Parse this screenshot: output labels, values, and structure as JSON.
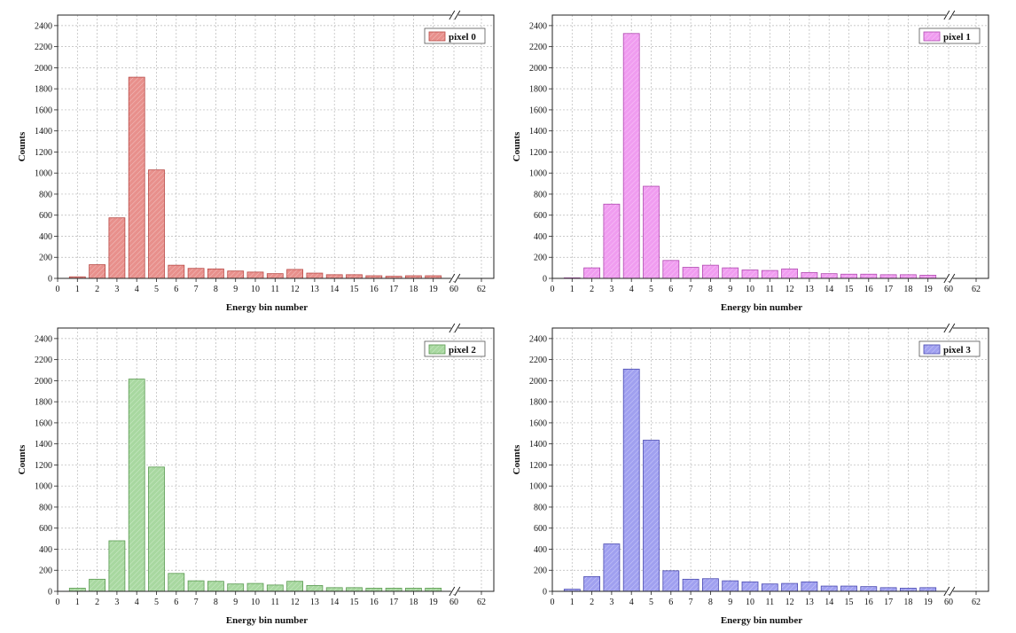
{
  "chart_data": [
    {
      "type": "bar",
      "xlabel": "Energy bin number",
      "ylabel": "Counts",
      "legend": "pixel 0",
      "legend_position": "top-right",
      "color": "#e8908c",
      "edge_color": "#b84a46",
      "ylim": [
        0,
        2500
      ],
      "yticks": [
        0,
        200,
        400,
        600,
        800,
        1000,
        1200,
        1400,
        1600,
        1800,
        2000,
        2200,
        2400
      ],
      "xticks": [
        "0",
        "1",
        "2",
        "3",
        "4",
        "5",
        "6",
        "7",
        "8",
        "9",
        "10",
        "11",
        "12",
        "13",
        "14",
        "15",
        "16",
        "17",
        "18",
        "19",
        "60",
        "62"
      ],
      "x_break": "between 19 and 60",
      "grid": true,
      "categories": [
        1,
        2,
        3,
        4,
        5,
        6,
        7,
        8,
        9,
        10,
        11,
        12,
        13,
        14,
        15,
        16,
        17,
        18,
        19
      ],
      "values": [
        15,
        130,
        575,
        1910,
        1030,
        125,
        95,
        90,
        70,
        60,
        45,
        85,
        50,
        35,
        35,
        25,
        20,
        25,
        25
      ]
    },
    {
      "type": "bar",
      "xlabel": "Energy bin number",
      "ylabel": "Counts",
      "legend": "pixel 1",
      "legend_position": "top-right",
      "color": "#f09cf0",
      "edge_color": "#b04ab0",
      "ylim": [
        0,
        2500
      ],
      "yticks": [
        0,
        200,
        400,
        600,
        800,
        1000,
        1200,
        1400,
        1600,
        1800,
        2000,
        2200,
        2400
      ],
      "xticks": [
        "0",
        "1",
        "2",
        "3",
        "4",
        "5",
        "6",
        "7",
        "8",
        "9",
        "10",
        "11",
        "12",
        "13",
        "14",
        "15",
        "16",
        "17",
        "18",
        "19",
        "60",
        "62"
      ],
      "x_break": "between 19 and 60",
      "grid": true,
      "categories": [
        1,
        2,
        3,
        4,
        5,
        6,
        7,
        8,
        9,
        10,
        11,
        12,
        13,
        14,
        15,
        16,
        17,
        18,
        19
      ],
      "values": [
        5,
        100,
        705,
        2325,
        875,
        170,
        105,
        125,
        100,
        80,
        75,
        90,
        55,
        45,
        40,
        40,
        35,
        35,
        30
      ]
    },
    {
      "type": "bar",
      "xlabel": "Energy bin number",
      "ylabel": "Counts",
      "legend": "pixel 2",
      "legend_position": "top-right",
      "color": "#a8d8a0",
      "edge_color": "#5a9a50",
      "ylim": [
        0,
        2500
      ],
      "yticks": [
        0,
        200,
        400,
        600,
        800,
        1000,
        1200,
        1400,
        1600,
        1800,
        2000,
        2200,
        2400
      ],
      "xticks": [
        "0",
        "1",
        "2",
        "3",
        "4",
        "5",
        "6",
        "7",
        "8",
        "9",
        "10",
        "11",
        "12",
        "13",
        "14",
        "15",
        "16",
        "17",
        "18",
        "19",
        "60",
        "62"
      ],
      "x_break": "between 19 and 60",
      "grid": true,
      "categories": [
        1,
        2,
        3,
        4,
        5,
        6,
        7,
        8,
        9,
        10,
        11,
        12,
        13,
        14,
        15,
        16,
        17,
        18,
        19
      ],
      "values": [
        30,
        115,
        480,
        2015,
        1180,
        170,
        100,
        95,
        70,
        75,
        60,
        95,
        55,
        35,
        35,
        30,
        30,
        30,
        30
      ]
    },
    {
      "type": "bar",
      "xlabel": "Energy bin number",
      "ylabel": "Counts",
      "legend": "pixel 3",
      "legend_position": "top-right",
      "color": "#a0a0f0",
      "edge_color": "#4a4ab0",
      "ylim": [
        0,
        2500
      ],
      "yticks": [
        0,
        200,
        400,
        600,
        800,
        1000,
        1200,
        1400,
        1600,
        1800,
        2000,
        2200,
        2400
      ],
      "xticks": [
        "0",
        "1",
        "2",
        "3",
        "4",
        "5",
        "6",
        "7",
        "8",
        "9",
        "10",
        "11",
        "12",
        "13",
        "14",
        "15",
        "16",
        "17",
        "18",
        "19",
        "60",
        "62"
      ],
      "x_break": "between 19 and 60",
      "grid": true,
      "categories": [
        1,
        2,
        3,
        4,
        5,
        6,
        7,
        8,
        9,
        10,
        11,
        12,
        13,
        14,
        15,
        16,
        17,
        18,
        19
      ],
      "values": [
        20,
        140,
        450,
        2110,
        1435,
        195,
        115,
        120,
        100,
        90,
        70,
        75,
        90,
        50,
        50,
        45,
        35,
        30,
        35
      ]
    }
  ]
}
